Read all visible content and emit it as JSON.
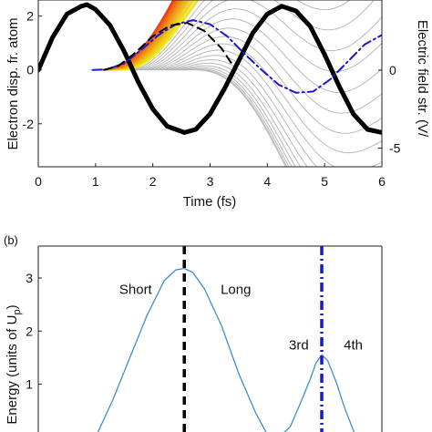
{
  "chart_data": [
    {
      "type": "line",
      "title": "",
      "xlabel": "Time (fs)",
      "ylabel": "Electron disp. fr. atom",
      "y2label": "Electric field str. (V/",
      "xlim": [
        0,
        6
      ],
      "ylim": [
        -3.6,
        2.6
      ],
      "y2lim": [
        -6.2,
        4.5
      ],
      "xticks": [
        "0",
        "1",
        "2",
        "3",
        "4",
        "5",
        "6"
      ],
      "yticks": [
        {
          "value": 2,
          "label": "2"
        },
        {
          "value": 0,
          "label": "0"
        },
        {
          "value": -2,
          "label": "-2"
        }
      ],
      "y2ticks": [
        {
          "value": 0,
          "label": "0"
        },
        {
          "value": -5,
          "label": "-5"
        }
      ],
      "trajectory_band": {
        "birth_start": 0.9,
        "birth_end": 2.5,
        "count": 28
      },
      "series": [
        {
          "role": "electric-field",
          "color": "#000000",
          "x": [
            0,
            0.25,
            0.5,
            0.75,
            0.85,
            1.0,
            1.25,
            1.5,
            1.75,
            2.0,
            2.25,
            2.55,
            2.75,
            3.0,
            3.25,
            3.5,
            3.75,
            4.0,
            4.25,
            4.5,
            4.75,
            5.0,
            5.25,
            5.5,
            5.75,
            6.0
          ],
          "y": [
            0,
            2.1,
            3.6,
            4.1,
            4.2,
            3.9,
            2.9,
            1.2,
            -0.8,
            -2.5,
            -3.6,
            -4.0,
            -3.8,
            -2.8,
            -1.2,
            0.6,
            2.4,
            3.6,
            4.1,
            3.8,
            2.8,
            1.0,
            -1.0,
            -2.8,
            -3.8,
            -4.0
          ]
        },
        {
          "role": "long-trajectory",
          "color": "#1a1acc",
          "dash": "dash-dot",
          "x": [
            0.95,
            1.2,
            1.5,
            1.8,
            2.1,
            2.4,
            2.7,
            3.0,
            3.3,
            3.6,
            3.9,
            4.2,
            4.5,
            4.8,
            5.1,
            5.4,
            5.7,
            6.0
          ],
          "y": [
            0,
            0.02,
            0.25,
            0.75,
            1.3,
            1.7,
            1.85,
            1.7,
            1.25,
            0.6,
            0.0,
            -0.55,
            -0.85,
            -0.8,
            -0.35,
            0.3,
            0.95,
            1.3
          ]
        },
        {
          "role": "short-trajectory",
          "color": "#000000",
          "dash": "dashed",
          "x": [
            1.15,
            1.4,
            1.7,
            2.0,
            2.3,
            2.6,
            2.9,
            3.2,
            3.45
          ],
          "y": [
            0,
            0.15,
            0.65,
            1.25,
            1.65,
            1.75,
            1.45,
            0.8,
            0.0
          ]
        }
      ]
    },
    {
      "type": "line",
      "panel_label": "(b)",
      "title": "",
      "ylabel_main": "Energy (units of U",
      "ylabel_sub": "p",
      "ylabel_tail": ")",
      "ylim": [
        0.1,
        3.6
      ],
      "yticks": [
        {
          "value": 3,
          "label": "3"
        },
        {
          "value": 2,
          "label": "2"
        },
        {
          "value": 1,
          "label": "1"
        }
      ],
      "annotations": [
        {
          "text": "Short",
          "x": 1.7,
          "y": 2.7
        },
        {
          "text": "Long",
          "x": 3.45,
          "y": 2.7
        },
        {
          "text": "3rd",
          "x": 4.55,
          "y": 1.65
        },
        {
          "text": "4th",
          "x": 5.5,
          "y": 1.65
        }
      ],
      "markers": [
        {
          "x": 2.55,
          "color": "#000000",
          "dash": "dashed"
        },
        {
          "x": 4.95,
          "color": "#1a1acc",
          "dash": "dash-dot"
        }
      ],
      "series": [
        {
          "color": "#3b8fd1",
          "x": [
            1.0,
            1.3,
            1.6,
            1.9,
            2.2,
            2.4,
            2.55,
            2.7,
            2.9,
            3.2,
            3.5,
            3.8,
            4.0,
            4.2,
            4.4,
            4.6,
            4.75,
            4.85,
            4.95,
            5.05,
            5.2,
            5.35,
            5.55
          ],
          "y": [
            0.0,
            0.7,
            1.5,
            2.3,
            2.95,
            3.15,
            3.18,
            3.1,
            2.8,
            2.1,
            1.2,
            0.45,
            0.05,
            0.0,
            0.2,
            0.7,
            1.1,
            1.4,
            1.55,
            1.45,
            1.05,
            0.55,
            0.0
          ]
        }
      ]
    }
  ]
}
